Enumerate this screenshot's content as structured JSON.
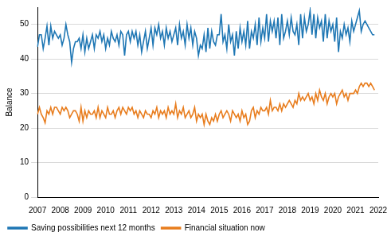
{
  "chart_data": {
    "type": "line",
    "y_label": "Balance",
    "categories": [
      "2007",
      null,
      null,
      null,
      null,
      null,
      null,
      null,
      null,
      null,
      null,
      null,
      "2008",
      null,
      null,
      null,
      null,
      null,
      null,
      null,
      null,
      null,
      null,
      null,
      "2009",
      null,
      null,
      null,
      null,
      null,
      null,
      null,
      null,
      null,
      null,
      null,
      "2010",
      null,
      null,
      null,
      null,
      null,
      null,
      null,
      null,
      null,
      null,
      null,
      "2011",
      null,
      null,
      null,
      null,
      null,
      null,
      null,
      null,
      null,
      null,
      null,
      "2012",
      null,
      null,
      null,
      null,
      null,
      null,
      null,
      null,
      null,
      null,
      null,
      "2013",
      null,
      null,
      null,
      null,
      null,
      null,
      null,
      null,
      null,
      null,
      null,
      "2014",
      null,
      null,
      null,
      null,
      null,
      null,
      null,
      null,
      null,
      null,
      null,
      "2015",
      null,
      null,
      null,
      null,
      null,
      null,
      null,
      null,
      null,
      null,
      null,
      "2016",
      null,
      null,
      null,
      null,
      null,
      null,
      null,
      null,
      null,
      null,
      null,
      "2017",
      null,
      null,
      null,
      null,
      null,
      null,
      null,
      null,
      null,
      null,
      null,
      "2018",
      null,
      null,
      null,
      null,
      null,
      null,
      null,
      null,
      null,
      null,
      null,
      "2019",
      null,
      null,
      null,
      null,
      null,
      null,
      null,
      null,
      null,
      null,
      null,
      "2020",
      null,
      null,
      null,
      null,
      null,
      null,
      null,
      null,
      null,
      null,
      null,
      "2021",
      null,
      null,
      null,
      null,
      null,
      null,
      null,
      null,
      null,
      null,
      null,
      "2022"
    ],
    "series": [
      {
        "name": "Saving possibilities next 12 months",
        "color": "#1f77b4",
        "values": [
          43.5,
          47,
          47,
          43,
          46,
          49.5,
          44,
          49.5,
          46,
          48,
          47,
          46,
          47,
          44,
          46,
          50,
          47,
          45,
          39,
          43,
          45,
          45,
          46,
          43,
          47,
          42,
          46,
          43,
          45,
          47,
          43,
          47,
          46,
          48,
          45,
          47,
          43,
          46,
          44,
          48,
          46,
          45,
          47,
          44,
          48,
          47,
          41,
          47,
          48,
          45,
          48,
          46,
          48,
          44,
          47,
          42,
          45,
          48,
          43,
          46,
          49,
          44,
          49,
          47,
          50,
          46,
          48,
          44,
          49,
          46,
          48,
          45,
          47,
          49,
          44,
          50,
          46,
          48,
          44,
          50,
          46,
          49,
          44,
          48,
          46,
          41,
          44,
          43,
          47,
          42,
          49,
          43,
          48,
          45,
          44,
          47,
          47,
          53,
          45,
          47,
          43,
          50,
          45,
          47,
          41,
          48,
          43,
          49,
          45,
          48,
          44,
          51,
          43,
          48,
          46,
          50,
          44,
          52,
          45,
          49,
          46,
          53,
          45,
          51,
          48,
          51,
          46,
          52,
          44,
          53,
          46,
          48,
          51,
          47,
          52,
          48,
          47,
          50,
          44,
          53,
          46,
          52,
          48,
          50,
          54,
          47,
          53,
          46,
          52,
          49,
          51,
          45,
          53,
          46,
          51,
          48,
          50,
          45,
          52,
          42,
          48,
          46,
          50,
          47,
          49,
          45,
          51,
          48,
          50,
          52,
          54,
          48,
          50,
          51,
          50,
          49,
          48,
          47,
          47,
          null,
          null
        ]
      },
      {
        "name": "Financial situation now",
        "color": "#e87d1e",
        "values": [
          24,
          26,
          24,
          23,
          21.5,
          25,
          24,
          26,
          24,
          26,
          26,
          25,
          24,
          26,
          25,
          26,
          25,
          23,
          24,
          25,
          25,
          24,
          22,
          26,
          22,
          25,
          23,
          25,
          24,
          24,
          25,
          23,
          26,
          23,
          25,
          24,
          23,
          26,
          24,
          24,
          25,
          23,
          25,
          26,
          24,
          26,
          25,
          24,
          26,
          25,
          26,
          24,
          25,
          23,
          25,
          24,
          23,
          25,
          24,
          24,
          23,
          25,
          24,
          26,
          23,
          25,
          24,
          25,
          23,
          26,
          24,
          25,
          24,
          27,
          23,
          25,
          24,
          26,
          23,
          24,
          25,
          23,
          24,
          26,
          22,
          24,
          23,
          24,
          21,
          24,
          22,
          21,
          23,
          22,
          24,
          22,
          24,
          25,
          23,
          24,
          25,
          24,
          22,
          25,
          24,
          23,
          24,
          22,
          25,
          23,
          24,
          21,
          22,
          25,
          26,
          23,
          25,
          24,
          26,
          25,
          25,
          26,
          24,
          28,
          25,
          26,
          26,
          25,
          27,
          25,
          27,
          26,
          27,
          28,
          27,
          26,
          28,
          27,
          30,
          28,
          29,
          28,
          29,
          30,
          28,
          29,
          27,
          30,
          28,
          31,
          29,
          28,
          30,
          27,
          29,
          30,
          29,
          30,
          27,
          29,
          30,
          31,
          29,
          30,
          28,
          30,
          30,
          30,
          31,
          30,
          32,
          33,
          32,
          33,
          33,
          32,
          33,
          32,
          31,
          null,
          null
        ]
      }
    ],
    "ylim": [
      0,
      55
    ],
    "yticks": [
      0,
      10,
      20,
      30,
      40,
      50
    ],
    "grid": true,
    "legend": "bottom"
  }
}
